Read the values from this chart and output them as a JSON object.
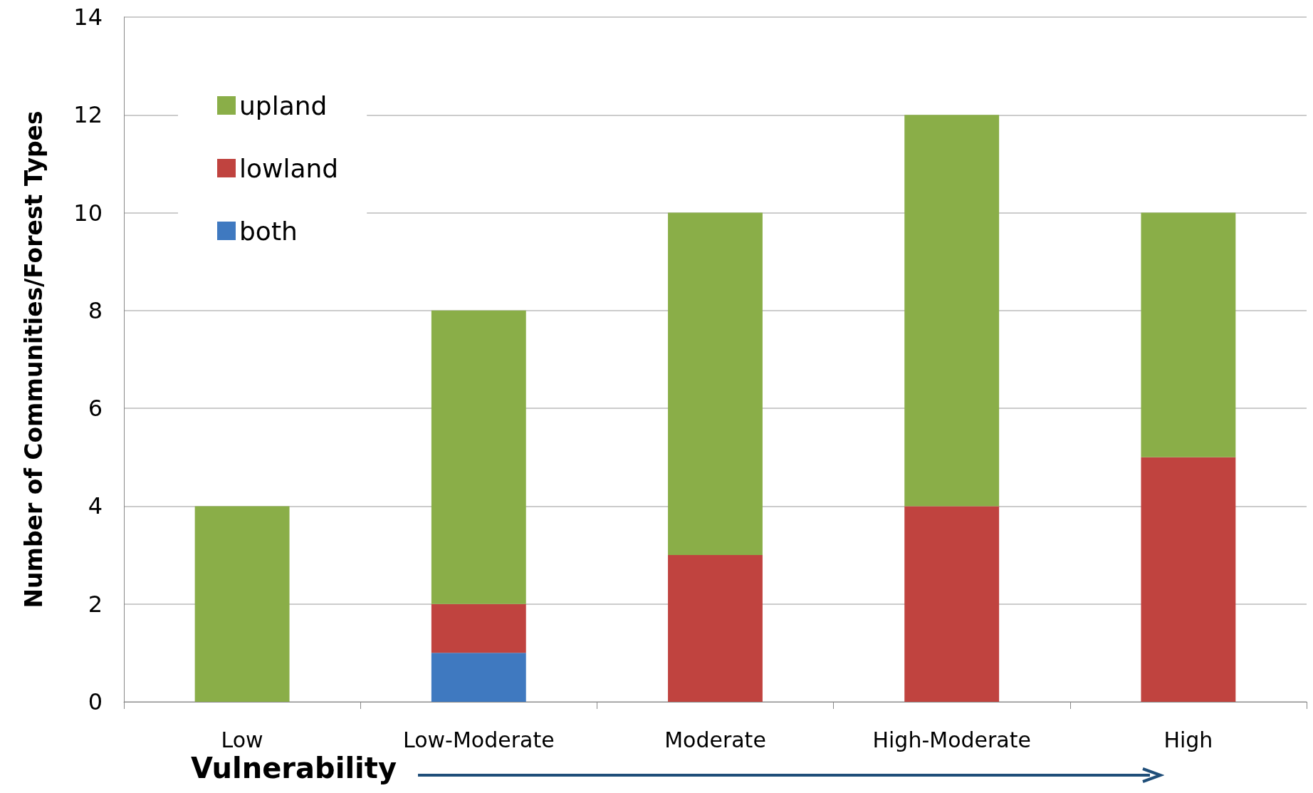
{
  "chart_data": {
    "type": "bar",
    "xlabel": "Vulnerability",
    "ylabel": "Number of Communities/Forest Types",
    "categories": [
      "Low",
      "Low-Moderate",
      "Moderate",
      "High-Moderate",
      "High"
    ],
    "stacked": true,
    "series": [
      {
        "name": "both",
        "color": "#3f79c0",
        "values": [
          0,
          1,
          0,
          0,
          0
        ]
      },
      {
        "name": "lowland",
        "color": "#c0433f",
        "values": [
          0,
          1,
          3,
          4,
          5
        ]
      },
      {
        "name": "upland",
        "color": "#8aae48",
        "values": [
          4,
          6,
          7,
          8,
          5
        ]
      }
    ],
    "ylim": [
      0,
      14
    ],
    "yticks": [
      0,
      2,
      4,
      6,
      8,
      10,
      12,
      14
    ],
    "grid": "y",
    "legend": "top left"
  }
}
